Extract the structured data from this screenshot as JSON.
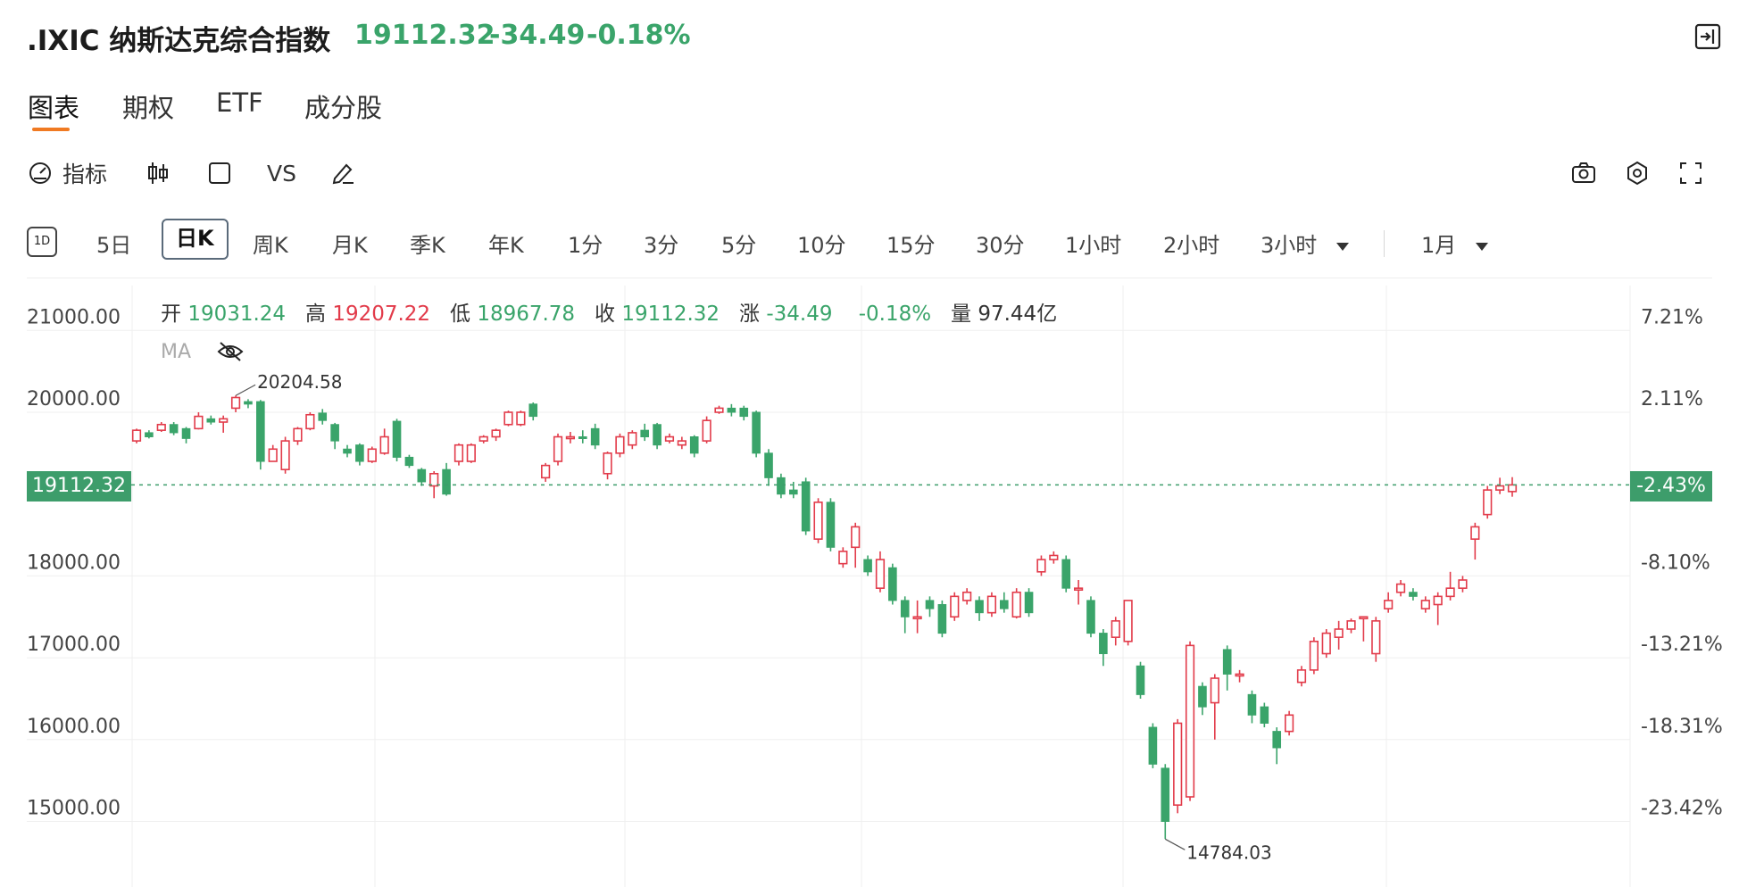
{
  "header": {
    "symbol": ".IXIC",
    "name": "纳斯达克综合指数",
    "last": "19112.32",
    "change": "-34.49",
    "change_pct": "-0.18%"
  },
  "tabs": [
    {
      "label": "图表",
      "active": true
    },
    {
      "label": "期权",
      "active": false
    },
    {
      "label": "ETF",
      "active": false
    },
    {
      "label": "成分股",
      "active": false
    }
  ],
  "toolbar": {
    "indicator_label": "指标",
    "vs_label": "VS"
  },
  "periods": {
    "p1d_icon": "1D",
    "items": [
      "5日",
      "日K",
      "周K",
      "月K",
      "季K",
      "年K",
      "1分",
      "3分",
      "5分",
      "10分",
      "15分",
      "30分",
      "1小时",
      "2小时",
      "3小时"
    ],
    "active": "日K",
    "range": "1月"
  },
  "info_bar": {
    "open_label": "开",
    "open": "19031.24",
    "high_label": "高",
    "high": "19207.22",
    "low_label": "低",
    "low": "18967.78",
    "close_label": "收",
    "close": "19112.32",
    "change_label": "涨",
    "change": "-34.49",
    "change_pct": "-0.18%",
    "volume_label": "量",
    "volume": "97.44亿"
  },
  "ma_label": "MA",
  "colors": {
    "up": "#e23b4a",
    "down": "#3aa46a",
    "accent": "#f07a22",
    "tag": "#3d9d6b"
  },
  "chart_data": {
    "type": "candlestick",
    "y_axis_left": [
      "21000.00",
      "20000.00",
      "18000.00",
      "17000.00",
      "16000.00",
      "15000.00"
    ],
    "y_axis_right": [
      "7.21%",
      "2.11%",
      "-8.10%",
      "-13.21%",
      "-18.31%",
      "-23.42%"
    ],
    "ylim": [
      14300,
      21500
    ],
    "last_price_label": "19112.32",
    "last_pct_label": "-2.43%",
    "high_annotation": "20204.58",
    "low_annotation": "14784.03",
    "candles": [
      [
        19650,
        19780,
        19620,
        19800
      ],
      [
        19750,
        19700,
        19680,
        19780
      ],
      [
        19780,
        19850,
        19760,
        19880
      ],
      [
        19850,
        19750,
        19720,
        19880
      ],
      [
        19800,
        19680,
        19620,
        19820
      ],
      [
        19800,
        19950,
        19790,
        20000
      ],
      [
        19920,
        19880,
        19850,
        19960
      ],
      [
        19880,
        19920,
        19750,
        19960
      ],
      [
        20050,
        20180,
        20000,
        20204.58
      ],
      [
        20130,
        20100,
        20050,
        20160
      ],
      [
        20130,
        19400,
        19300,
        20150
      ],
      [
        19400,
        19550,
        19400,
        19600
      ],
      [
        19300,
        19650,
        19250,
        19700
      ],
      [
        19650,
        19800,
        19600,
        19820
      ],
      [
        19800,
        19970,
        19780,
        20000
      ],
      [
        19990,
        19900,
        19850,
        20040
      ],
      [
        19850,
        19650,
        19550,
        19870
      ],
      [
        19550,
        19500,
        19450,
        19600
      ],
      [
        19600,
        19400,
        19350,
        19620
      ],
      [
        19400,
        19550,
        19380,
        19580
      ],
      [
        19500,
        19700,
        19480,
        19800
      ],
      [
        19890,
        19450,
        19400,
        19920
      ],
      [
        19450,
        19350,
        19320,
        19480
      ],
      [
        19300,
        19150,
        19100,
        19320
      ],
      [
        19100,
        19250,
        18950,
        19280
      ],
      [
        19300,
        19000,
        18980,
        19380
      ],
      [
        19400,
        19600,
        19350,
        19620
      ],
      [
        19400,
        19600,
        19380,
        19620
      ],
      [
        19650,
        19700,
        19620,
        19720
      ],
      [
        19700,
        19780,
        19650,
        19800
      ],
      [
        19850,
        20000,
        19830,
        20020
      ],
      [
        19850,
        20000,
        19830,
        20020
      ],
      [
        20100,
        19950,
        19900,
        20120
      ],
      [
        19200,
        19350,
        19150,
        19380
      ],
      [
        19400,
        19700,
        19350,
        19740
      ],
      [
        19700,
        19700,
        19620,
        19760
      ],
      [
        19700,
        19680,
        19620,
        19780
      ],
      [
        19800,
        19600,
        19550,
        19860
      ],
      [
        19250,
        19500,
        19180,
        19520
      ],
      [
        19500,
        19700,
        19450,
        19740
      ],
      [
        19600,
        19750,
        19550,
        19780
      ],
      [
        19780,
        19700,
        19650,
        19860
      ],
      [
        19850,
        19600,
        19550,
        19870
      ],
      [
        19650,
        19700,
        19620,
        19740
      ],
      [
        19600,
        19650,
        19550,
        19700
      ],
      [
        19700,
        19500,
        19450,
        19720
      ],
      [
        19650,
        19900,
        19620,
        19950
      ],
      [
        20000,
        20050,
        19980,
        20080
      ],
      [
        20050,
        20000,
        19950,
        20100
      ],
      [
        20050,
        19950,
        19900,
        20080
      ],
      [
        20000,
        19500,
        19450,
        20020
      ],
      [
        19500,
        19200,
        19100,
        19550
      ],
      [
        19200,
        19000,
        18950,
        19250
      ],
      [
        19050,
        19000,
        18950,
        19150
      ],
      [
        19150,
        18550,
        18500,
        19200
      ],
      [
        18450,
        18900,
        18400,
        18950
      ],
      [
        18900,
        18350,
        18300,
        18950
      ],
      [
        18150,
        18300,
        18100,
        18350
      ],
      [
        18350,
        18600,
        18100,
        18650
      ],
      [
        18200,
        18050,
        18000,
        18250
      ],
      [
        17850,
        18200,
        17800,
        18300
      ],
      [
        18100,
        17700,
        17650,
        18150
      ],
      [
        17700,
        17500,
        17300,
        17750
      ],
      [
        17500,
        17500,
        17300,
        17700
      ],
      [
        17700,
        17600,
        17500,
        17750
      ],
      [
        17650,
        17300,
        17250,
        17700
      ],
      [
        17500,
        17750,
        17450,
        17800
      ],
      [
        17700,
        17800,
        17650,
        17850
      ],
      [
        17700,
        17550,
        17450,
        17750
      ],
      [
        17550,
        17750,
        17500,
        17800
      ],
      [
        17700,
        17600,
        17550,
        17800
      ],
      [
        17500,
        17800,
        17480,
        17850
      ],
      [
        17800,
        17550,
        17500,
        17850
      ],
      [
        18050,
        18200,
        18000,
        18250
      ],
      [
        18200,
        18250,
        18150,
        18300
      ],
      [
        18200,
        17850,
        17800,
        18250
      ],
      [
        17850,
        17850,
        17650,
        17950
      ],
      [
        17700,
        17300,
        17250,
        17750
      ],
      [
        17300,
        17050,
        16900,
        17350
      ],
      [
        17250,
        17450,
        17150,
        17500
      ],
      [
        17200,
        17700,
        17150,
        17700
      ],
      [
        16900,
        16550,
        16500,
        16950
      ],
      [
        16150,
        15700,
        15650,
        16200
      ],
      [
        15650,
        15000,
        14784.03,
        15700
      ],
      [
        15200,
        16200,
        15100,
        16250
      ],
      [
        15300,
        17150,
        15250,
        17200
      ],
      [
        16650,
        16400,
        16300,
        16700
      ],
      [
        16450,
        16750,
        16000,
        16800
      ],
      [
        17100,
        16800,
        16600,
        17150
      ],
      [
        16800,
        16800,
        16700,
        16850
      ],
      [
        16550,
        16300,
        16200,
        16600
      ],
      [
        16400,
        16200,
        16150,
        16450
      ],
      [
        16100,
        15900,
        15700,
        16150
      ],
      [
        16100,
        16300,
        16050,
        16350
      ],
      [
        16700,
        16850,
        16650,
        16900
      ],
      [
        16850,
        17200,
        16800,
        17250
      ],
      [
        17050,
        17300,
        17000,
        17350
      ],
      [
        17250,
        17350,
        17100,
        17450
      ],
      [
        17350,
        17450,
        17300,
        17480
      ],
      [
        17500,
        17500,
        17200,
        17500
      ],
      [
        17050,
        17450,
        16950,
        17500
      ],
      [
        17600,
        17700,
        17550,
        17800
      ],
      [
        17800,
        17900,
        17750,
        17950
      ],
      [
        17800,
        17750,
        17700,
        17850
      ],
      [
        17600,
        17700,
        17550,
        17750
      ],
      [
        17650,
        17750,
        17400,
        17800
      ],
      [
        17750,
        17850,
        17700,
        18050
      ],
      [
        17850,
        17950,
        17800,
        18000
      ],
      [
        18450,
        18600,
        18200,
        18650
      ],
      [
        18750,
        19050,
        18700,
        19100
      ],
      [
        19050,
        19100,
        19000,
        19200
      ],
      [
        19031.24,
        19112.32,
        18967.78,
        19207.22
      ]
    ]
  }
}
